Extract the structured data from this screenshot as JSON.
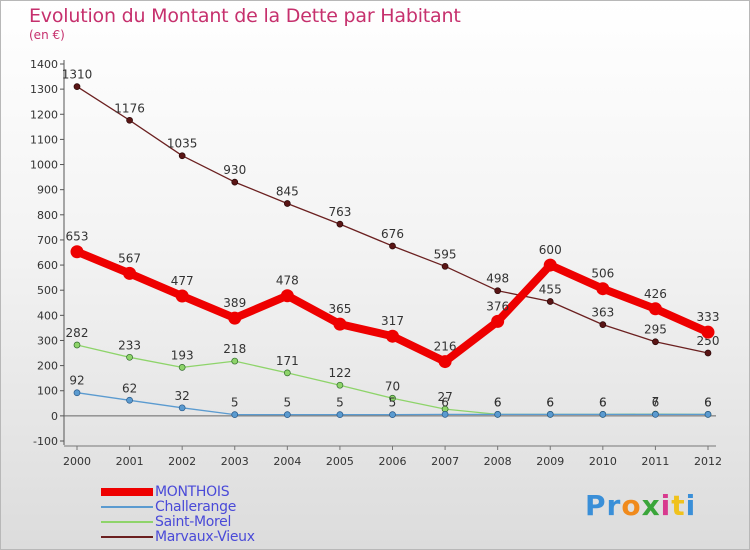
{
  "title": "Evolution du Montant de la Dette par Habitant",
  "subtitle": "(en €)",
  "logo": {
    "letters": [
      "P",
      "r",
      "o",
      "x",
      "i",
      "t",
      "i"
    ],
    "colors": [
      "#3a8fd8",
      "#3a8fd8",
      "#f08a1c",
      "#3aa53a",
      "#d83a8f",
      "#f0c21c",
      "#3a8fd8"
    ]
  },
  "chart_data": {
    "type": "line",
    "x": [
      "2000",
      "2001",
      "2002",
      "2003",
      "2004",
      "2005",
      "2006",
      "2007",
      "2008",
      "2009",
      "2010",
      "2011",
      "2012"
    ],
    "ylim": [
      -100,
      1400
    ],
    "yticks": [
      "-100",
      "0",
      "100",
      "200",
      "300",
      "400",
      "500",
      "600",
      "700",
      "800",
      "900",
      "1000",
      "1100",
      "1200",
      "1300",
      "1400"
    ],
    "grid": false,
    "legend_position": "bottom-left",
    "series": [
      {
        "name": "Marvaux-Vieux",
        "color": "#6b2020",
        "values": [
          1310,
          1176,
          1035,
          930,
          845,
          763,
          676,
          595,
          498,
          455,
          363,
          295,
          250
        ],
        "labels": [
          "1310",
          "1176",
          "1035",
          "930",
          "845",
          "763",
          "676",
          "595",
          "498",
          "455",
          "363",
          "295",
          "250"
        ]
      },
      {
        "name": "Saint-Morel",
        "color": "#8ed46a",
        "values": [
          282,
          233,
          193,
          218,
          171,
          122,
          70,
          27,
          6,
          6,
          6,
          7,
          6
        ],
        "labels": [
          "282",
          "233",
          "193",
          "218",
          "171",
          "122",
          "70",
          "27",
          "6",
          "6",
          "6",
          "7",
          "6"
        ]
      },
      {
        "name": "Challerange",
        "color": "#5b9bd0",
        "values": [
          92,
          62,
          32,
          5,
          5,
          5,
          5,
          6,
          6,
          6,
          6,
          6,
          6
        ],
        "labels": [
          "92",
          "62",
          "32",
          "5",
          "5",
          "5",
          "5",
          "6",
          "6",
          "6",
          "6",
          "6",
          "6"
        ]
      },
      {
        "name": "MONTHOIS",
        "color": "#ee0000",
        "values": [
          653,
          567,
          477,
          389,
          478,
          365,
          317,
          216,
          376,
          600,
          506,
          426,
          333
        ],
        "labels": [
          "653",
          "567",
          "477",
          "389",
          "478",
          "365",
          "317",
          "216",
          "376",
          "600",
          "506",
          "426",
          "333"
        ]
      }
    ],
    "legend_order": [
      "MONTHOIS",
      "Challerange",
      "Saint-Morel",
      "Marvaux-Vieux"
    ]
  }
}
